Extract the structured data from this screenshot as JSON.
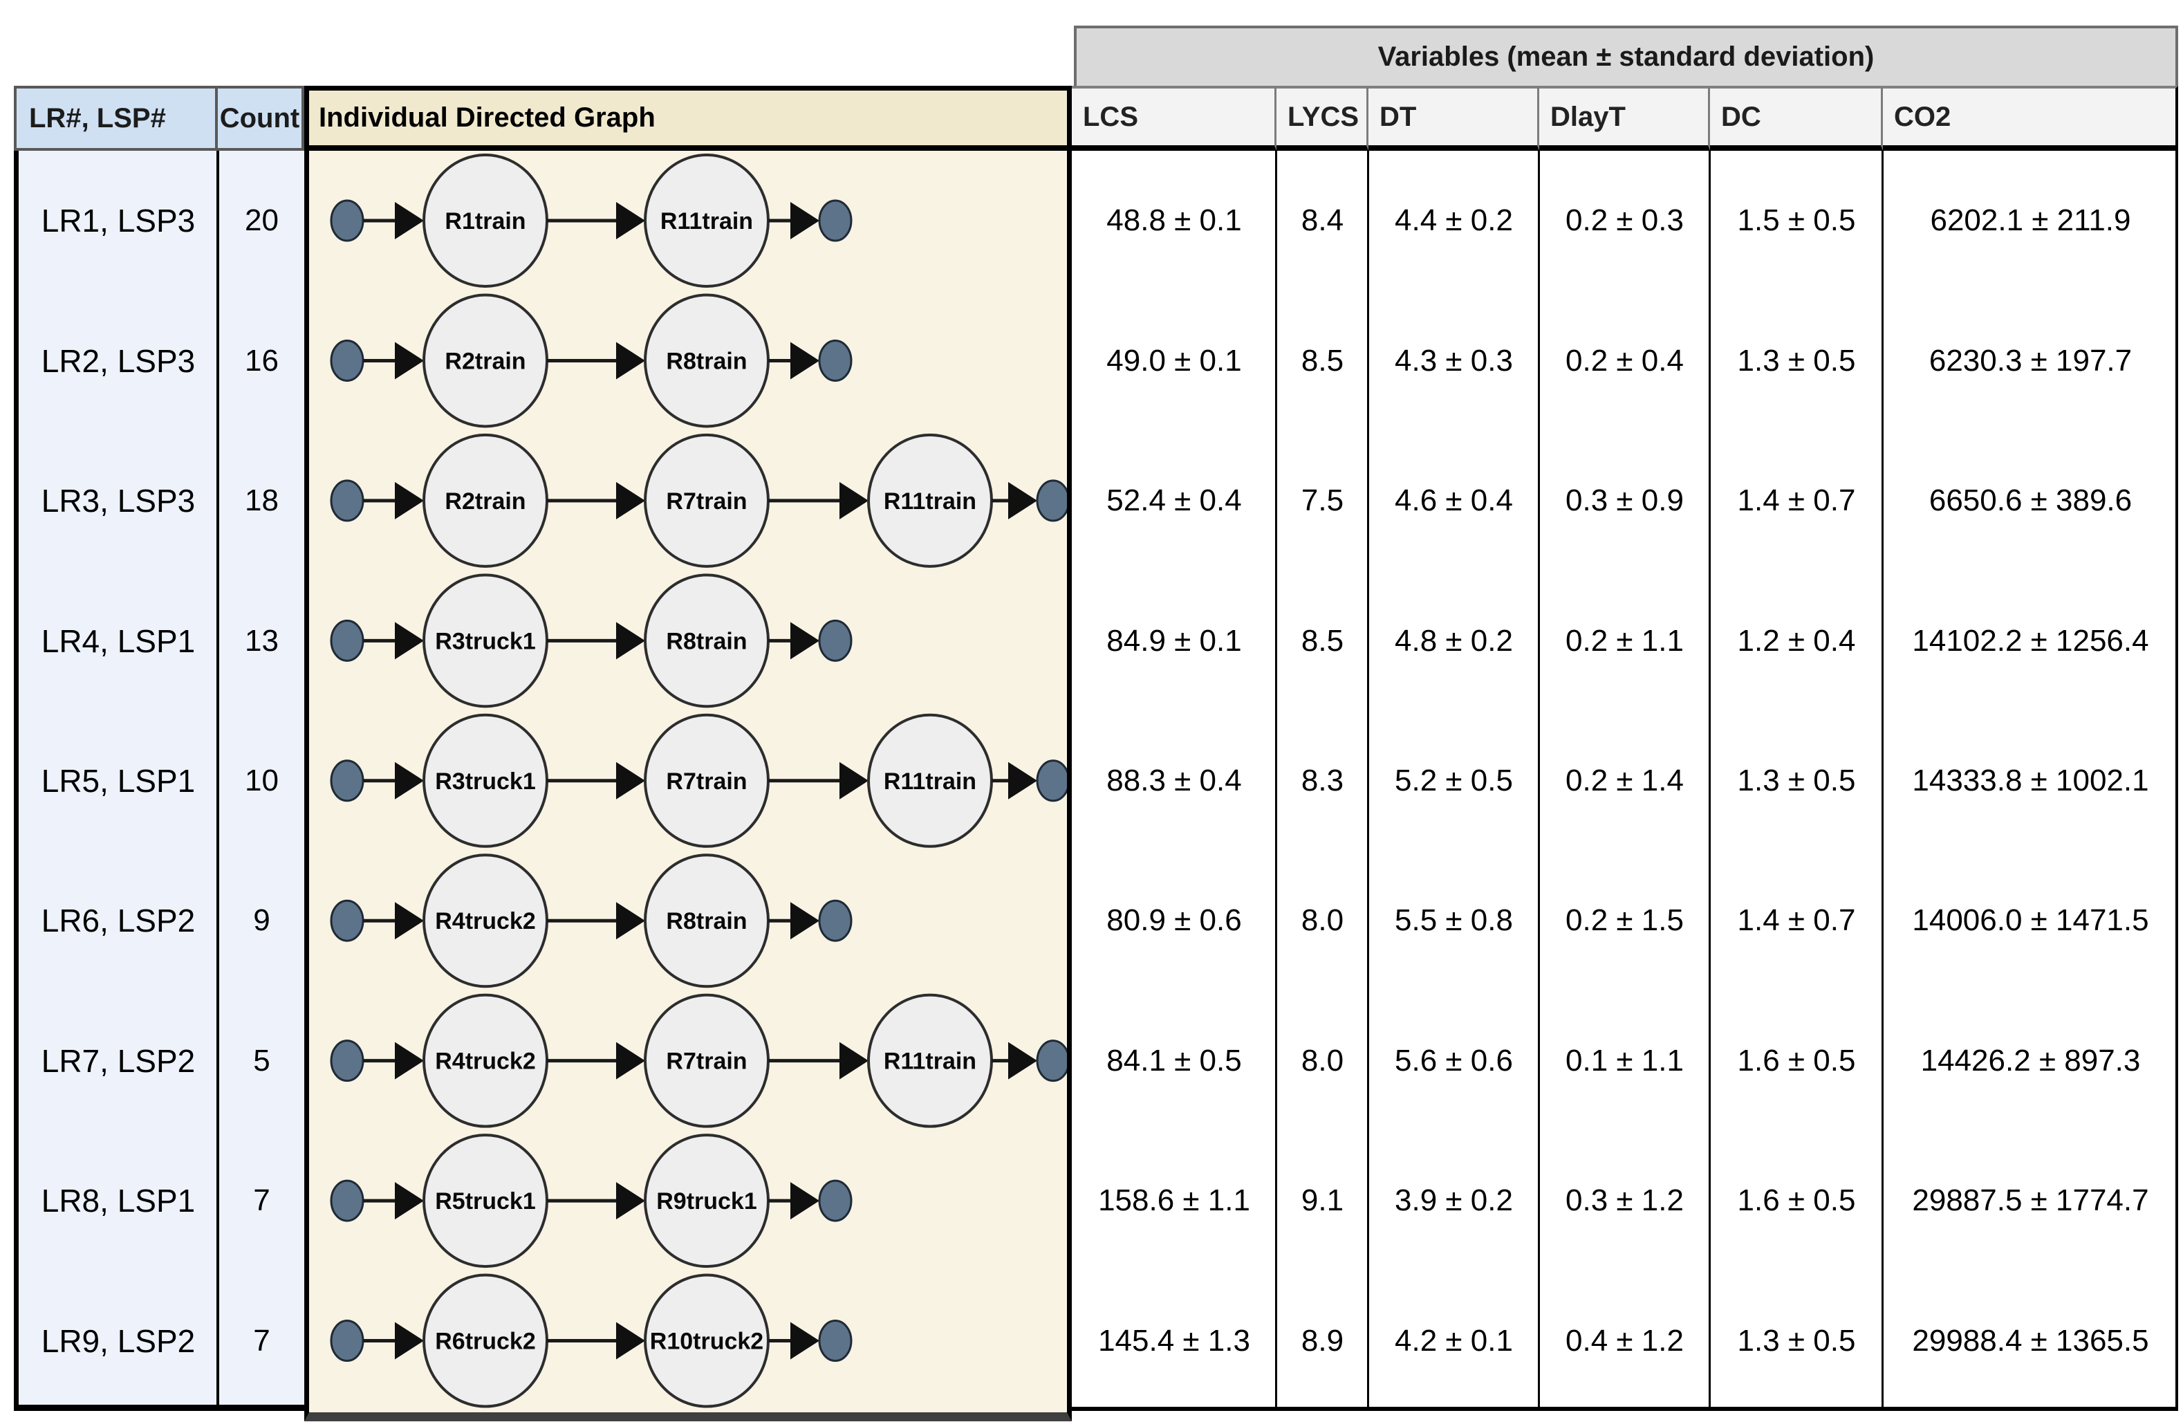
{
  "table": {
    "group_header": "Variables (mean ± standard deviation)",
    "columns": [
      "LR#, LSP#",
      "Count",
      "Individual Directed Graph",
      "LCS",
      "LYCS",
      "DT",
      "DlayT",
      "DC",
      "CO2"
    ],
    "rows": [
      {
        "label": "LR1, LSP3",
        "count": "20",
        "graph": [
          "R1train",
          "R11train"
        ],
        "lcs": "48.8 ± 0.1",
        "lycs": "8.4",
        "dt": "4.4 ± 0.2",
        "dlayt": "0.2 ± 0.3",
        "dc": "1.5 ± 0.5",
        "co2": "6202.1 ± 211.9"
      },
      {
        "label": "LR2, LSP3",
        "count": "16",
        "graph": [
          "R2train",
          "R8train"
        ],
        "lcs": "49.0 ± 0.1",
        "lycs": "8.5",
        "dt": "4.3 ± 0.3",
        "dlayt": "0.2 ± 0.4",
        "dc": "1.3 ± 0.5",
        "co2": "6230.3 ± 197.7"
      },
      {
        "label": "LR3, LSP3",
        "count": "18",
        "graph": [
          "R2train",
          "R7train",
          "R11train"
        ],
        "lcs": "52.4 ± 0.4",
        "lycs": "7.5",
        "dt": "4.6 ± 0.4",
        "dlayt": "0.3 ± 0.9",
        "dc": "1.4 ± 0.7",
        "co2": "6650.6 ± 389.6"
      },
      {
        "label": "LR4, LSP1",
        "count": "13",
        "graph": [
          "R3truck1",
          "R8train"
        ],
        "lcs": "84.9 ± 0.1",
        "lycs": "8.5",
        "dt": "4.8 ± 0.2",
        "dlayt": "0.2 ± 1.1",
        "dc": "1.2 ± 0.4",
        "co2": "14102.2 ± 1256.4"
      },
      {
        "label": "LR5, LSP1",
        "count": "10",
        "graph": [
          "R3truck1",
          "R7train",
          "R11train"
        ],
        "lcs": "88.3 ± 0.4",
        "lycs": "8.3",
        "dt": "5.2 ± 0.5",
        "dlayt": "0.2 ± 1.4",
        "dc": "1.3 ± 0.5",
        "co2": "14333.8 ± 1002.1"
      },
      {
        "label": "LR6, LSP2",
        "count": "9",
        "graph": [
          "R4truck2",
          "R8train"
        ],
        "lcs": "80.9 ± 0.6",
        "lycs": "8.0",
        "dt": "5.5 ± 0.8",
        "dlayt": "0.2 ± 1.5",
        "dc": "1.4 ± 0.7",
        "co2": "14006.0 ± 1471.5"
      },
      {
        "label": "LR7, LSP2",
        "count": "5",
        "graph": [
          "R4truck2",
          "R7train",
          "R11train"
        ],
        "lcs": "84.1 ± 0.5",
        "lycs": "8.0",
        "dt": "5.6 ± 0.6",
        "dlayt": "0.1 ± 1.1",
        "dc": "1.6 ± 0.5",
        "co2": "14426.2 ± 897.3"
      },
      {
        "label": "LR8, LSP1",
        "count": "7",
        "graph": [
          "R5truck1",
          "R9truck1"
        ],
        "lcs": "158.6 ± 1.1",
        "lycs": "9.1",
        "dt": "3.9 ± 0.2",
        "dlayt": "0.3 ± 1.2",
        "dc": "1.6 ± 0.5",
        "co2": "29887.5 ± 1774.7"
      },
      {
        "label": "LR9, LSP2",
        "count": "7",
        "graph": [
          "R6truck2",
          "R10truck2"
        ],
        "lcs": "145.4 ± 1.3",
        "lycs": "8.9",
        "dt": "4.2 ± 0.1",
        "dlayt": "0.4 ± 1.2",
        "dc": "1.3 ± 0.5",
        "co2": "29988.4 ± 1365.5"
      }
    ],
    "colors": {
      "group_header_bg": "#d9d9d9",
      "subheader_bg": "#f3f3f3",
      "left_header_bg": "#cfe0f3",
      "graph_header_bg": "#f0e9cd",
      "left_body_bg": "#edf2fb",
      "graph_body_bg": "#f8f3e3",
      "node_fill": "#eeeeee",
      "node_stroke": "#2d2d2d",
      "terminal_dot_fill": "#5d7389",
      "arrow_color": "#1a1a1a"
    }
  }
}
